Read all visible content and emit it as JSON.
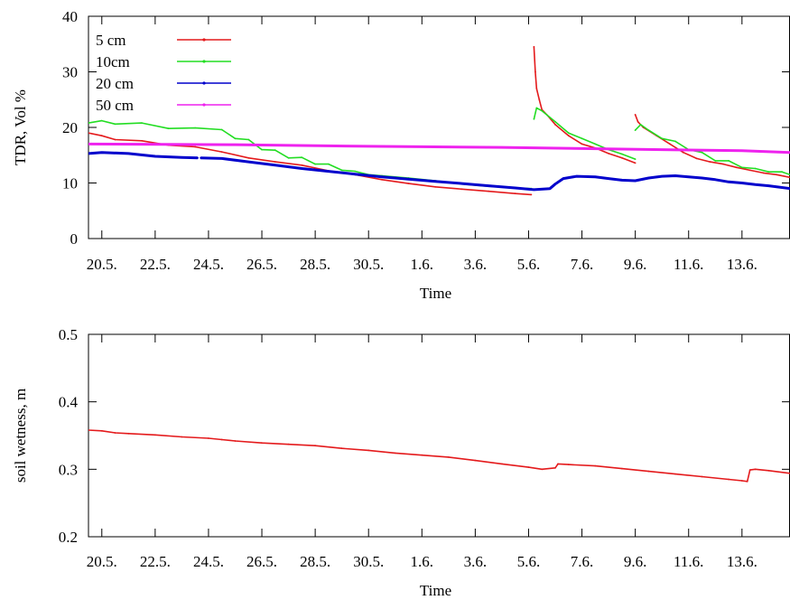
{
  "chart_data": [
    {
      "type": "line",
      "title": "",
      "xlabel": "Time",
      "ylabel": "TDR, Vol %",
      "ylim": [
        0,
        40
      ],
      "yticks": [
        "0",
        "10",
        "20",
        "30",
        "40"
      ],
      "xlim": [
        19.5,
        45.8
      ],
      "xticks": [
        {
          "x": 20,
          "label": "20.5."
        },
        {
          "x": 22,
          "label": "22.5."
        },
        {
          "x": 24,
          "label": "24.5."
        },
        {
          "x": 26,
          "label": "26.5."
        },
        {
          "x": 28,
          "label": "28.5."
        },
        {
          "x": 30,
          "label": "30.5."
        },
        {
          "x": 32,
          "label": "1.6."
        },
        {
          "x": 34,
          "label": "3.6."
        },
        {
          "x": 36,
          "label": "5.6."
        },
        {
          "x": 38,
          "label": "7.6."
        },
        {
          "x": 40,
          "label": "9.6."
        },
        {
          "x": 42,
          "label": "11.6."
        },
        {
          "x": 44,
          "label": "13.6."
        }
      ],
      "grid": false,
      "legend_position": "top-left",
      "series": [
        {
          "name": "5 cm",
          "color": "#e41a1c",
          "segments": [
            [
              [
                19.5,
                19.0
              ],
              [
                20.0,
                18.5
              ],
              [
                20.5,
                17.8
              ],
              [
                21.5,
                17.6
              ],
              [
                22.5,
                16.8
              ],
              [
                23.5,
                16.5
              ],
              [
                24.5,
                15.6
              ],
              [
                25.5,
                14.5
              ],
              [
                26.5,
                13.8
              ],
              [
                27.5,
                13.2
              ],
              [
                28.5,
                12.2
              ],
              [
                29.5,
                11.5
              ],
              [
                30.5,
                10.6
              ],
              [
                31.5,
                9.9
              ],
              [
                32.5,
                9.3
              ],
              [
                33.5,
                8.9
              ],
              [
                34.5,
                8.5
              ],
              [
                35.5,
                8.1
              ],
              [
                36.1,
                7.9
              ]
            ],
            [
              [
                36.2,
                34.5
              ],
              [
                36.25,
                30.0
              ],
              [
                36.3,
                27.0
              ],
              [
                36.4,
                25.0
              ],
              [
                36.5,
                23.2
              ],
              [
                36.7,
                22.2
              ],
              [
                37.0,
                20.5
              ],
              [
                37.5,
                18.5
              ],
              [
                38.0,
                17.0
              ],
              [
                38.5,
                16.3
              ],
              [
                39.0,
                15.3
              ],
              [
                39.5,
                14.5
              ],
              [
                40.0,
                13.6
              ]
            ],
            [
              [
                40.0,
                22.3
              ],
              [
                40.1,
                21.0
              ],
              [
                40.3,
                20.0
              ],
              [
                40.8,
                18.5
              ],
              [
                41.3,
                17.0
              ],
              [
                41.8,
                15.5
              ],
              [
                42.3,
                14.4
              ],
              [
                42.8,
                13.8
              ],
              [
                43.3,
                13.4
              ],
              [
                43.8,
                12.8
              ],
              [
                44.3,
                12.3
              ],
              [
                44.8,
                11.8
              ],
              [
                45.3,
                11.5
              ],
              [
                45.8,
                11.0
              ]
            ]
          ]
        },
        {
          "name": "10cm",
          "color": "#22dd22",
          "segments": [
            [
              [
                19.5,
                20.8
              ],
              [
                20.0,
                21.2
              ],
              [
                20.5,
                20.6
              ],
              [
                21.5,
                20.8
              ],
              [
                22.5,
                19.8
              ],
              [
                23.5,
                19.9
              ],
              [
                24.5,
                19.6
              ],
              [
                25.0,
                18.0
              ],
              [
                25.5,
                17.8
              ],
              [
                26.0,
                16.0
              ],
              [
                26.5,
                15.9
              ],
              [
                27.0,
                14.5
              ],
              [
                27.5,
                14.6
              ],
              [
                28.0,
                13.4
              ],
              [
                28.5,
                13.4
              ],
              [
                29.0,
                12.3
              ],
              [
                29.5,
                12.1
              ],
              [
                30.0,
                11.5
              ],
              [
                30.5,
                11.3
              ],
              [
                31.5,
                10.9
              ],
              [
                32.5,
                10.4
              ],
              [
                33.5,
                9.8
              ],
              [
                34.5,
                9.4
              ],
              [
                35.5,
                9.1
              ],
              [
                36.1,
                9.0
              ]
            ],
            [
              [
                36.2,
                21.5
              ],
              [
                36.3,
                23.5
              ],
              [
                36.5,
                23.0
              ],
              [
                37.0,
                21.0
              ],
              [
                37.5,
                19.0
              ],
              [
                38.0,
                18.0
              ],
              [
                38.5,
                17.0
              ],
              [
                39.0,
                16.0
              ],
              [
                39.5,
                15.2
              ],
              [
                40.0,
                14.3
              ]
            ],
            [
              [
                40.0,
                19.5
              ],
              [
                40.2,
                20.5
              ],
              [
                40.5,
                19.5
              ],
              [
                41.0,
                18.0
              ],
              [
                41.5,
                17.5
              ],
              [
                42.0,
                16.0
              ],
              [
                42.5,
                15.5
              ],
              [
                43.0,
                14.0
              ],
              [
                43.5,
                14.0
              ],
              [
                44.0,
                12.8
              ],
              [
                44.5,
                12.6
              ],
              [
                45.0,
                12.0
              ],
              [
                45.5,
                12.0
              ],
              [
                45.8,
                11.5
              ]
            ]
          ]
        },
        {
          "name": "20 cm",
          "color": "#0000cc",
          "segments": [
            [
              [
                19.5,
                15.3
              ],
              [
                20.0,
                15.5
              ],
              [
                21.0,
                15.3
              ],
              [
                22.0,
                14.8
              ],
              [
                23.0,
                14.6
              ],
              [
                23.6,
                14.5
              ]
            ],
            [
              [
                23.7,
                14.5
              ],
              [
                24.5,
                14.4
              ],
              [
                25.5,
                13.8
              ],
              [
                26.5,
                13.2
              ],
              [
                27.5,
                12.6
              ],
              [
                28.5,
                12.1
              ],
              [
                29.5,
                11.6
              ],
              [
                30.5,
                11.1
              ],
              [
                31.5,
                10.7
              ],
              [
                32.5,
                10.3
              ],
              [
                33.5,
                9.9
              ],
              [
                34.5,
                9.5
              ],
              [
                35.5,
                9.1
              ],
              [
                36.2,
                8.8
              ],
              [
                36.8,
                9.0
              ],
              [
                37.0,
                9.8
              ],
              [
                37.3,
                10.8
              ],
              [
                37.8,
                11.2
              ],
              [
                38.5,
                11.1
              ],
              [
                39.0,
                10.8
              ],
              [
                39.5,
                10.5
              ],
              [
                40.0,
                10.4
              ],
              [
                40.5,
                10.9
              ],
              [
                41.0,
                11.2
              ],
              [
                41.5,
                11.3
              ],
              [
                42.0,
                11.1
              ],
              [
                42.5,
                10.9
              ],
              [
                43.0,
                10.6
              ],
              [
                43.5,
                10.2
              ],
              [
                44.0,
                10.0
              ],
              [
                44.5,
                9.7
              ],
              [
                45.0,
                9.5
              ],
              [
                45.8,
                9.0
              ]
            ]
          ]
        },
        {
          "name": "50 cm",
          "color": "#ee22ee",
          "segments": [
            [
              [
                19.5,
                17.0
              ],
              [
                25.0,
                16.9
              ],
              [
                30.0,
                16.6
              ],
              [
                35.0,
                16.4
              ],
              [
                38.0,
                16.2
              ],
              [
                41.0,
                16.0
              ],
              [
                44.0,
                15.8
              ],
              [
                45.8,
                15.5
              ]
            ]
          ]
        }
      ]
    },
    {
      "type": "line",
      "title": "",
      "xlabel": "Time",
      "ylabel": "soil wetness, m",
      "ylim": [
        0.2,
        0.5
      ],
      "yticks": [
        "0.2",
        "0.3",
        "0.4",
        "0.5"
      ],
      "xlim": [
        19.5,
        45.8
      ],
      "xticks": [
        {
          "x": 20,
          "label": "20.5."
        },
        {
          "x": 22,
          "label": "22.5."
        },
        {
          "x": 24,
          "label": "24.5."
        },
        {
          "x": 26,
          "label": "26.5."
        },
        {
          "x": 28,
          "label": "28.5."
        },
        {
          "x": 30,
          "label": "30.5."
        },
        {
          "x": 32,
          "label": "1.6."
        },
        {
          "x": 34,
          "label": "3.6."
        },
        {
          "x": 36,
          "label": "5.6."
        },
        {
          "x": 38,
          "label": "7.6."
        },
        {
          "x": 40,
          "label": "9.6."
        },
        {
          "x": 42,
          "label": "11.6."
        },
        {
          "x": 44,
          "label": "13.6."
        }
      ],
      "grid": false,
      "series": [
        {
          "color": "#e41a1c",
          "segments": [
            [
              [
                19.5,
                0.358
              ],
              [
                20.0,
                0.357
              ],
              [
                20.5,
                0.354
              ],
              [
                21.0,
                0.353
              ],
              [
                22.0,
                0.351
              ],
              [
                23.0,
                0.348
              ],
              [
                24.0,
                0.346
              ],
              [
                24.5,
                0.344
              ],
              [
                25.0,
                0.342
              ],
              [
                26.0,
                0.339
              ],
              [
                27.0,
                0.337
              ],
              [
                28.0,
                0.335
              ],
              [
                29.0,
                0.331
              ],
              [
                30.0,
                0.328
              ],
              [
                31.0,
                0.324
              ],
              [
                32.0,
                0.321
              ],
              [
                33.0,
                0.318
              ],
              [
                34.0,
                0.313
              ],
              [
                35.0,
                0.308
              ],
              [
                36.0,
                0.303
              ],
              [
                36.5,
                0.3
              ],
              [
                37.0,
                0.302
              ],
              [
                37.1,
                0.308
              ],
              [
                37.5,
                0.307
              ],
              [
                38.5,
                0.305
              ],
              [
                39.5,
                0.301
              ],
              [
                40.5,
                0.297
              ],
              [
                41.5,
                0.293
              ],
              [
                42.5,
                0.289
              ],
              [
                43.5,
                0.285
              ],
              [
                44.0,
                0.283
              ],
              [
                44.2,
                0.282
              ],
              [
                44.3,
                0.299
              ],
              [
                44.5,
                0.3
              ],
              [
                45.0,
                0.298
              ],
              [
                45.8,
                0.294
              ]
            ]
          ]
        }
      ]
    }
  ]
}
